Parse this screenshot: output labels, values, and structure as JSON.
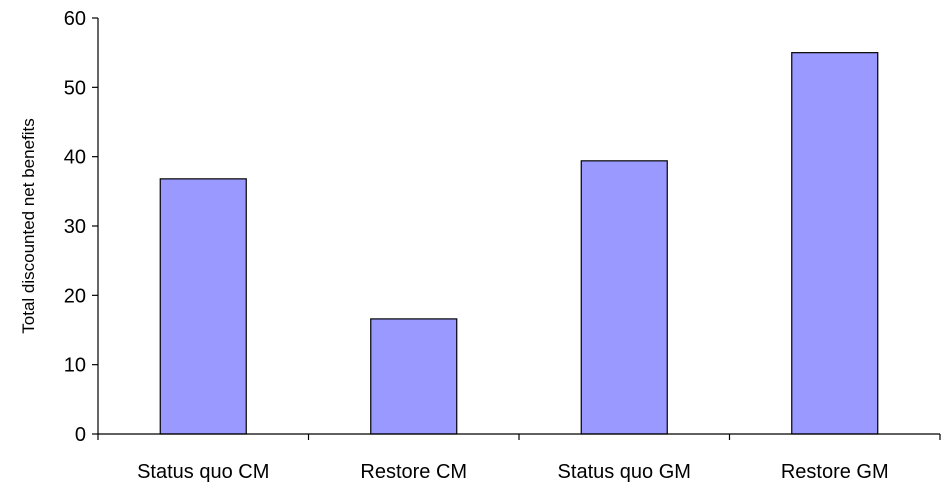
{
  "chart_data": {
    "type": "bar",
    "title": "",
    "xlabel": "",
    "ylabel": "Total discounted net benefits",
    "categories": [
      "Status quo CM",
      "Restore CM",
      "Status quo GM",
      "Restore GM"
    ],
    "series": [
      {
        "values": [
          36.8,
          16.6,
          39.4,
          55.0
        ]
      }
    ],
    "ylim": [
      0,
      60
    ],
    "yticks": [
      0,
      10,
      20,
      30,
      40,
      50,
      60
    ],
    "ytick_labels": [
      "0",
      "10",
      "20",
      "30",
      "40",
      "50",
      "60"
    ],
    "grid": false,
    "legend": "none",
    "bar_color": "#9999ff",
    "bar_edge_color": "#000000"
  }
}
